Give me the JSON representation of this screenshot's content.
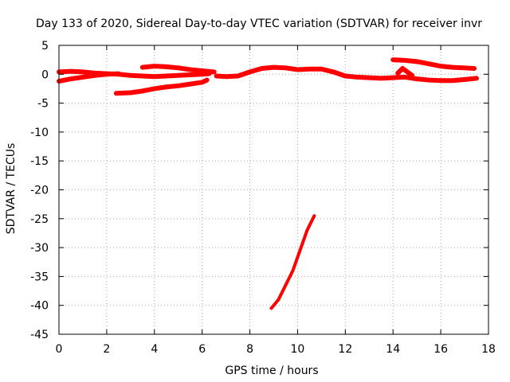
{
  "chart_data": {
    "type": "line",
    "title": "Day 133 of 2020, Sidereal Day-to-day VTEC variation (SDTVAR) for receiver invr",
    "xlabel": "GPS time / hours",
    "ylabel": "SDTVAR / TECUs",
    "xlim": [
      0,
      18
    ],
    "ylim": [
      -45,
      5
    ],
    "x_ticks": [
      0,
      2,
      4,
      6,
      8,
      10,
      12,
      14,
      16,
      18
    ],
    "y_ticks": [
      5,
      0,
      -5,
      -10,
      -15,
      -20,
      -25,
      -30,
      -35,
      -40,
      -45
    ],
    "grid": true,
    "legend": "none",
    "series_color": "#ff0000",
    "series": [
      {
        "name": "track-a",
        "x": [
          0.0,
          0.5,
          1.0,
          1.5,
          2.0,
          2.5,
          3.0,
          3.5,
          4.0,
          4.5,
          5.0,
          5.5,
          6.0,
          6.3
        ],
        "y": [
          0.4,
          0.5,
          0.4,
          0.2,
          0.1,
          0.0,
          -0.2,
          -0.3,
          -0.4,
          -0.3,
          -0.2,
          -0.1,
          0.0,
          0.1
        ]
      },
      {
        "name": "track-b",
        "x": [
          0.0,
          0.5,
          1.0,
          1.5,
          2.0,
          2.5
        ],
        "y": [
          -1.2,
          -0.8,
          -0.5,
          -0.2,
          0.0,
          0.1
        ]
      },
      {
        "name": "track-c",
        "x": [
          2.4,
          3.0,
          3.5,
          4.0,
          4.5,
          5.0,
          5.5,
          6.0,
          6.2
        ],
        "y": [
          -3.3,
          -3.2,
          -2.9,
          -2.5,
          -2.2,
          -2.0,
          -1.7,
          -1.4,
          -1.0
        ]
      },
      {
        "name": "track-d",
        "x": [
          3.5,
          4.0,
          4.5,
          5.0,
          5.5,
          6.0,
          6.5
        ],
        "y": [
          1.2,
          1.4,
          1.3,
          1.1,
          0.8,
          0.6,
          0.4
        ]
      },
      {
        "name": "track-e",
        "x": [
          6.6,
          7.0,
          7.5,
          8.0,
          8.5,
          9.0,
          9.5,
          10.0,
          10.5,
          11.0,
          11.5,
          12.0,
          12.5,
          13.0,
          13.5,
          14.0,
          14.5,
          15.0,
          15.5,
          16.0,
          16.5,
          17.0,
          17.5
        ],
        "y": [
          -0.3,
          -0.4,
          -0.3,
          0.4,
          1.0,
          1.2,
          1.1,
          0.8,
          0.9,
          0.9,
          0.4,
          -0.3,
          -0.5,
          -0.6,
          -0.7,
          -0.6,
          -0.5,
          -0.8,
          -1.0,
          -1.1,
          -1.1,
          -0.9,
          -0.7
        ]
      },
      {
        "name": "track-f",
        "x": [
          14.0,
          14.5,
          15.0,
          15.5,
          16.0,
          16.5,
          17.0,
          17.4
        ],
        "y": [
          2.5,
          2.4,
          2.2,
          1.8,
          1.4,
          1.2,
          1.1,
          1.0
        ]
      },
      {
        "name": "track-g",
        "x": [
          14.2,
          14.4,
          14.6,
          14.8
        ],
        "y": [
          0.2,
          1.0,
          0.4,
          -0.2
        ]
      },
      {
        "name": "track-h",
        "x": [
          8.9,
          9.2,
          9.5,
          9.8,
          10.1,
          10.4,
          10.7
        ],
        "y": [
          -40.5,
          -39.0,
          -36.5,
          -34.0,
          -30.5,
          -27.0,
          -24.5
        ]
      }
    ]
  }
}
